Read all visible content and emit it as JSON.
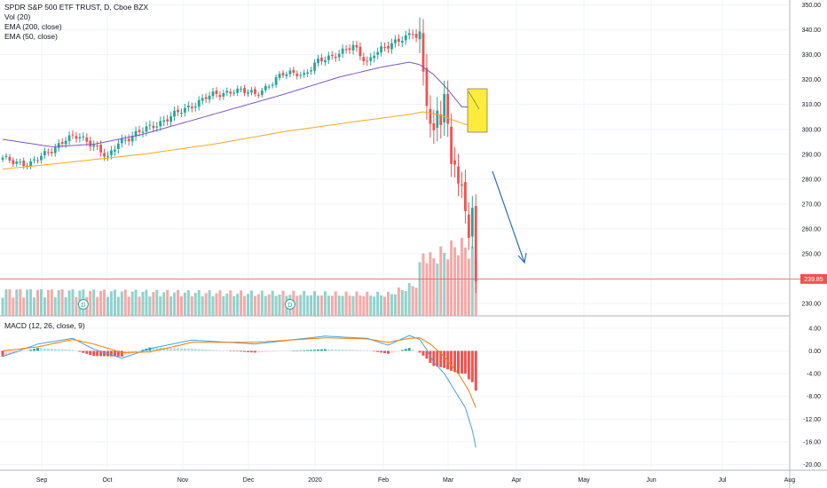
{
  "legend": {
    "symbol": "SPDR S&P 500 ETF TRUST, D, Cboe BZX",
    "vol": "Vol (20)",
    "ema200": "EMA (200, close)",
    "ema50": "EMA (50, close)",
    "macd": "MACD (12, 26, close, 9)"
  },
  "last_price": "239.85",
  "colors": {
    "up": "#26a69a",
    "down": "#ef5350",
    "ema50": "#7e57c2",
    "ema200": "#f9a825",
    "macd_line": "#4aa3df",
    "signal_line": "#f57c00",
    "annotation_arrow": "#2f6fbd",
    "annotation_box": "#ffeb3b",
    "price_line": "#ef5350"
  },
  "chart_data": {
    "type": "candlestick",
    "price_axis": {
      "ylim": [
        225,
        352
      ],
      "ticks": [
        "350.00",
        "340.00",
        "330.00",
        "320.00",
        "310.00",
        "300.00",
        "290.00",
        "280.00",
        "270.00",
        "260.00",
        "250.00",
        "240.00",
        "230.00"
      ]
    },
    "macd_axis": {
      "ylim": [
        -21,
        6
      ],
      "ticks": [
        "4.00",
        "0.00",
        "-4.00",
        "-8.00",
        "-12.00",
        "-16.00",
        "-20.00"
      ]
    },
    "time_axis": [
      "Sep",
      "Oct",
      "Nov",
      "Dec",
      "2020",
      "Feb",
      "Mar",
      "Apr",
      "May",
      "Jun",
      "Jul",
      "Aug"
    ],
    "price_anchors": [
      [
        0,
        288
      ],
      [
        8,
        286
      ],
      [
        14,
        292
      ],
      [
        18,
        296
      ],
      [
        22,
        297
      ],
      [
        26,
        294
      ],
      [
        30,
        288
      ],
      [
        33,
        295
      ],
      [
        38,
        298
      ],
      [
        45,
        303
      ],
      [
        52,
        308
      ],
      [
        58,
        313
      ],
      [
        62,
        314
      ],
      [
        66,
        316
      ],
      [
        72,
        314
      ],
      [
        76,
        318
      ],
      [
        80,
        322
      ],
      [
        84,
        323
      ],
      [
        86,
        322
      ],
      [
        90,
        327
      ],
      [
        96,
        331
      ],
      [
        100,
        333
      ],
      [
        102,
        330
      ],
      [
        104,
        327
      ],
      [
        106,
        331
      ],
      [
        110,
        333
      ],
      [
        114,
        337
      ],
      [
        117,
        339
      ],
      [
        118,
        337
      ],
      [
        119,
        336
      ],
      [
        120,
        322
      ],
      [
        121,
        312
      ],
      [
        122,
        302
      ],
      [
        123,
        297
      ],
      [
        124,
        309
      ],
      [
        125,
        305
      ],
      [
        126,
        313
      ],
      [
        127,
        300
      ],
      [
        128,
        288
      ],
      [
        129,
        287
      ],
      [
        130,
        275
      ],
      [
        131,
        276
      ],
      [
        132,
        270
      ],
      [
        133,
        257
      ],
      [
        134,
        266
      ],
      [
        135,
        240
      ]
    ],
    "ema50_anchors": [
      [
        0,
        296
      ],
      [
        14,
        293
      ],
      [
        26,
        294
      ],
      [
        40,
        298
      ],
      [
        60,
        306
      ],
      [
        80,
        314
      ],
      [
        96,
        321
      ],
      [
        108,
        325
      ],
      [
        116,
        327
      ],
      [
        119,
        326
      ],
      [
        123,
        322
      ],
      [
        127,
        316
      ],
      [
        131,
        309
      ]
    ],
    "ema200_anchors": [
      [
        0,
        284
      ],
      [
        14,
        286
      ],
      [
        40,
        290
      ],
      [
        60,
        294
      ],
      [
        80,
        299
      ],
      [
        100,
        303
      ],
      [
        116,
        306
      ],
      [
        120,
        307
      ],
      [
        124,
        306
      ],
      [
        128,
        304
      ],
      [
        132,
        302
      ]
    ],
    "volume_profile": [
      [
        0,
        0.35
      ],
      [
        110,
        0.3
      ],
      [
        118,
        0.45
      ],
      [
        120,
        0.9
      ],
      [
        122,
        0.8
      ],
      [
        126,
        0.9
      ],
      [
        130,
        1.0
      ],
      [
        133,
        0.95
      ],
      [
        135,
        0.8
      ]
    ],
    "macd_anchors": [
      [
        0,
        -1.0
      ],
      [
        10,
        1.2
      ],
      [
        20,
        2.2
      ],
      [
        26,
        0.3
      ],
      [
        34,
        -1.3
      ],
      [
        42,
        0.4
      ],
      [
        54,
        1.9
      ],
      [
        72,
        1.2
      ],
      [
        92,
        2.6
      ],
      [
        104,
        2.2
      ],
      [
        110,
        1.0
      ],
      [
        116,
        2.7
      ],
      [
        119,
        2.0
      ],
      [
        121,
        0.2
      ],
      [
        123,
        -2.0
      ],
      [
        126,
        -4.0
      ],
      [
        129,
        -7.0
      ],
      [
        132,
        -10.0
      ],
      [
        134,
        -14.0
      ],
      [
        135,
        -17.0
      ]
    ],
    "signal_anchors": [
      [
        0,
        0.0
      ],
      [
        10,
        0.7
      ],
      [
        20,
        2.0
      ],
      [
        26,
        1.2
      ],
      [
        34,
        -0.3
      ],
      [
        42,
        -0.2
      ],
      [
        54,
        1.5
      ],
      [
        72,
        1.5
      ],
      [
        92,
        2.3
      ],
      [
        104,
        2.1
      ],
      [
        110,
        1.5
      ],
      [
        116,
        2.2
      ],
      [
        119,
        2.3
      ],
      [
        122,
        1.2
      ],
      [
        126,
        -1.0
      ],
      [
        130,
        -4.0
      ],
      [
        133,
        -7.0
      ],
      [
        135,
        -10.0
      ]
    ]
  }
}
